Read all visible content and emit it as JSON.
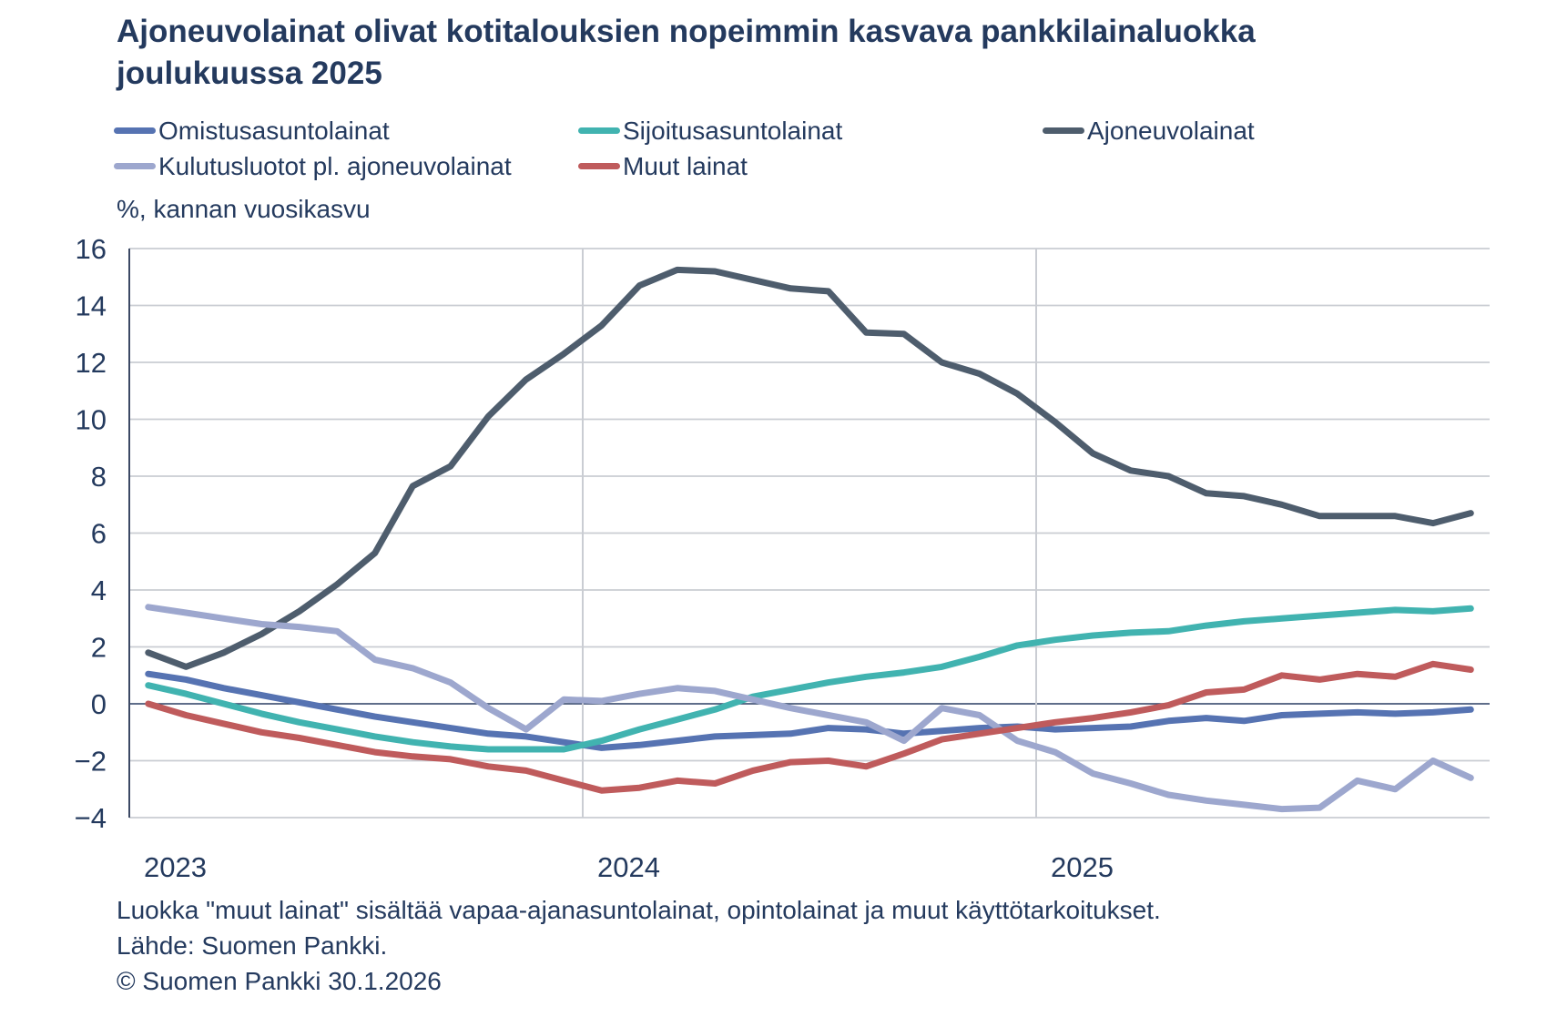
{
  "title": "Ajoneuvolainat olivat kotitalouksien nopeimmin kasvava pankkilainaluokka joulukuussa 2025",
  "chart_data": {
    "type": "line",
    "title": "Ajoneuvolainat olivat kotitalouksien nopeimmin kasvava pankkilainaluokka joulukuussa 2025",
    "ylabel": "%, kannan vuosikasvu",
    "xlabel": "",
    "ylim": [
      -4,
      16
    ],
    "ytick_step": 2,
    "grid": true,
    "legend_position": "top",
    "x_unit": "month",
    "x_range": [
      "2023-01",
      "2025-12"
    ],
    "year_labels": [
      "2023",
      "2024",
      "2025"
    ],
    "series": [
      {
        "name": "Omistusasuntolainat",
        "color": "#5673B2",
        "values": [
          1.05,
          0.85,
          0.55,
          0.3,
          0.05,
          -0.2,
          -0.45,
          -0.65,
          -0.85,
          -1.05,
          -1.15,
          -1.35,
          -1.55,
          -1.45,
          -1.3,
          -1.15,
          -1.1,
          -1.05,
          -0.85,
          -0.9,
          -1.05,
          -0.95,
          -0.85,
          -0.8,
          -0.9,
          -0.85,
          -0.8,
          -0.6,
          -0.5,
          -0.6,
          -0.4,
          -0.35,
          -0.3,
          -0.35,
          -0.3,
          -0.2
        ]
      },
      {
        "name": "Sijoitusasuntolainat",
        "color": "#41B3B0",
        "values": [
          0.65,
          0.35,
          0.0,
          -0.35,
          -0.65,
          -0.9,
          -1.15,
          -1.35,
          -1.5,
          -1.6,
          -1.6,
          -1.6,
          -1.3,
          -0.9,
          -0.55,
          -0.2,
          0.25,
          0.5,
          0.75,
          0.95,
          1.1,
          1.3,
          1.65,
          2.05,
          2.25,
          2.4,
          2.5,
          2.55,
          2.75,
          2.9,
          3.0,
          3.1,
          3.2,
          3.3,
          3.25,
          3.35
        ]
      },
      {
        "name": "Ajoneuvolainat",
        "color": "#4E5D6D",
        "values": [
          1.8,
          1.3,
          1.8,
          2.45,
          3.25,
          4.2,
          5.3,
          7.65,
          8.35,
          10.1,
          11.4,
          12.3,
          13.3,
          14.7,
          15.25,
          15.2,
          14.9,
          14.6,
          14.5,
          13.05,
          13.0,
          12.0,
          11.6,
          10.9,
          9.9,
          8.8,
          8.2,
          8.0,
          7.4,
          7.3,
          7.0,
          6.6,
          6.6,
          6.6,
          6.35,
          6.7
        ]
      },
      {
        "name": "Kulutusluotot pl. ajoneuvolainat",
        "color": "#9DA7CE",
        "values": [
          3.4,
          3.2,
          3.0,
          2.8,
          2.7,
          2.55,
          1.55,
          1.25,
          0.75,
          -0.15,
          -0.9,
          0.15,
          0.1,
          0.35,
          0.55,
          0.45,
          0.15,
          -0.15,
          -0.4,
          -0.65,
          -1.3,
          -0.15,
          -0.4,
          -1.3,
          -1.7,
          -2.45,
          -2.8,
          -3.2,
          -3.4,
          -3.55,
          -3.7,
          -3.65,
          -2.7,
          -3.0,
          -2.0,
          -2.6
        ]
      },
      {
        "name": "Muut lainat",
        "color": "#BF5B5C",
        "values": [
          0.0,
          -0.4,
          -0.7,
          -1.0,
          -1.2,
          -1.45,
          -1.7,
          -1.85,
          -1.95,
          -2.2,
          -2.35,
          -2.7,
          -3.05,
          -2.95,
          -2.7,
          -2.8,
          -2.35,
          -2.05,
          -2.0,
          -2.2,
          -1.75,
          -1.25,
          -1.05,
          -0.85,
          -0.65,
          -0.5,
          -0.3,
          -0.05,
          0.4,
          0.5,
          1.0,
          0.85,
          1.05,
          0.95,
          1.4,
          1.2
        ]
      }
    ]
  },
  "footnotes": [
    "Luokka \"muut lainat\" sisältää vapaa-ajanasuntolainat, opintolainat ja muut käyttötarkoitukset.",
    "Lähde: Suomen Pankki.",
    "© Suomen Pankki 30.1.2026"
  ],
  "colors": {
    "text": "#243A5E",
    "gridline": "#CACDD3",
    "zero_line": "#2A3E63",
    "y_axis_line": "#3C4965"
  }
}
